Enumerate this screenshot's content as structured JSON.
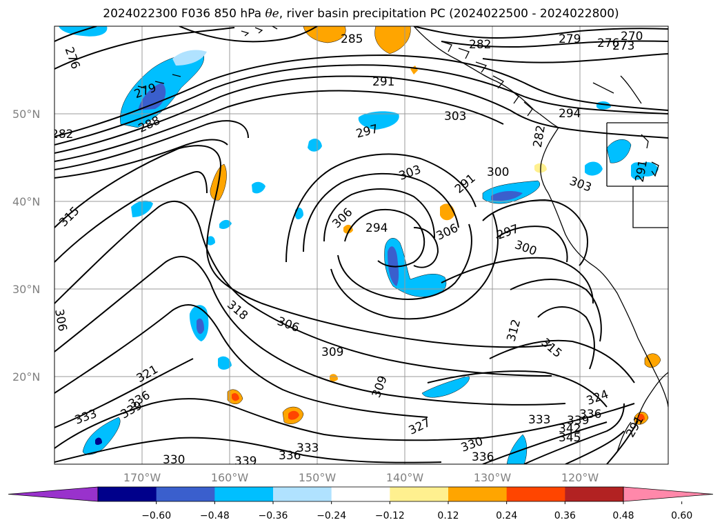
{
  "title_prefix": "2024022300 F036 850 hPa ",
  "title_symbol": "θe",
  "title_suffix": ", river basin precipitation PC (2024022500 - 2024022800)",
  "chart_data": {
    "type": "contour-map",
    "title": "2024022300 F036 850 hPa θe, river basin precipitation PC (2024022500 - 2024022800)",
    "lat_ticks": [
      "50°N",
      "40°N",
      "30°N",
      "20°N"
    ],
    "lon_ticks": [
      "170°W",
      "160°W",
      "150°W",
      "140°W",
      "130°W",
      "120°W"
    ],
    "contour_labels": [
      "276",
      "279",
      "282",
      "285",
      "282",
      "279",
      "276",
      "273",
      "270",
      "291",
      "303",
      "294",
      "297",
      "303",
      "300",
      "291",
      "303",
      "306",
      "294",
      "306",
      "297",
      "300",
      "315",
      "306",
      "318",
      "306",
      "309",
      "309",
      "312",
      "315",
      "321",
      "336",
      "339",
      "333",
      "324",
      "327",
      "333",
      "339",
      "336",
      "345",
      "342",
      "330",
      "336",
      "330",
      "339",
      "336",
      "333",
      "288",
      "282",
      "291",
      "291"
    ],
    "colorbar": {
      "ticks": [
        "−0.60",
        "−0.48",
        "−0.36",
        "−0.24",
        "−0.12",
        "0.12",
        "0.24",
        "0.36",
        "0.48",
        "0.60"
      ],
      "bins": [
        {
          "from": null,
          "to": -0.6,
          "color": "#9932cc"
        },
        {
          "from": -0.6,
          "to": -0.48,
          "color": "#00008b"
        },
        {
          "from": -0.48,
          "to": -0.36,
          "color": "#3a5fcd"
        },
        {
          "from": -0.36,
          "to": -0.24,
          "color": "#00bfff"
        },
        {
          "from": -0.24,
          "to": -0.12,
          "color": "#b0e2ff"
        },
        {
          "from": -0.12,
          "to": 0.12,
          "color": "#ffffff"
        },
        {
          "from": 0.12,
          "to": 0.24,
          "color": "#fff08f"
        },
        {
          "from": 0.24,
          "to": 0.36,
          "color": "#ffa500"
        },
        {
          "from": 0.36,
          "to": 0.48,
          "color": "#ff4500"
        },
        {
          "from": 0.48,
          "to": 0.6,
          "color": "#b22222"
        },
        {
          "from": 0.6,
          "to": null,
          "color": "#ff88aa"
        }
      ]
    }
  }
}
